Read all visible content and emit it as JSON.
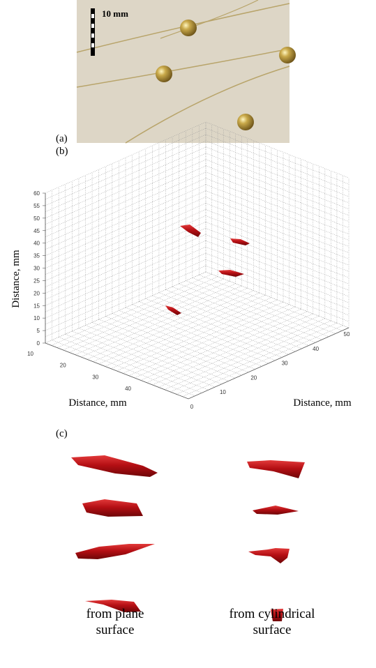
{
  "panel_a": {
    "label": "(a)",
    "scale": "10 mm"
  },
  "panel_b": {
    "label": "(b)",
    "z_label": "Distance, mm",
    "x_label": "Distance, mm",
    "y_label": "Distance, mm",
    "z_ticks": [
      0,
      5,
      10,
      15,
      20,
      25,
      30,
      35,
      40,
      45,
      50,
      55,
      60
    ],
    "x_ticks": [
      10,
      20,
      30,
      40
    ],
    "y_ticks": [
      0,
      10,
      20,
      30,
      40,
      50
    ]
  },
  "panel_c": {
    "label": "(c)",
    "captions": [
      [
        "from plane",
        "surface"
      ],
      [
        "from cylindrical",
        "surface"
      ]
    ]
  }
}
